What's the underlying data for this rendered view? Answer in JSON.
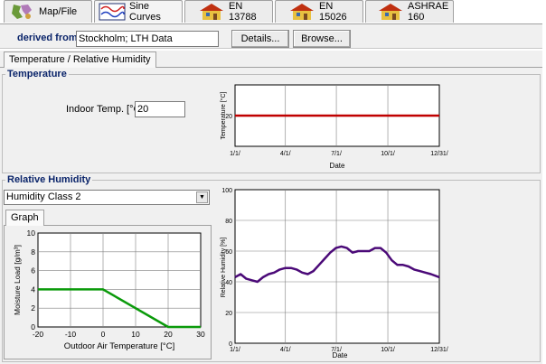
{
  "tabs": [
    {
      "label": "Map/File",
      "icon": "map-icon",
      "active": false
    },
    {
      "label": "Sine Curves",
      "icon": "sine-curves-icon",
      "active": true
    },
    {
      "label": "EN 13788",
      "icon": "house-icon",
      "active": false
    },
    {
      "label": "EN 15026",
      "icon": "house-icon",
      "active": false
    },
    {
      "label": "ASHRAE 160",
      "icon": "house-icon",
      "active": false
    }
  ],
  "source": {
    "label": "derived from",
    "value": "Stockholm; LTH Data",
    "details_button": "Details...",
    "browse_button": "Browse..."
  },
  "section_tab": "Temperature / Relative Humidity",
  "temperature": {
    "title": "Temperature",
    "indoor_label": "Indoor Temp. [°C]",
    "indoor_value": "20"
  },
  "humidity": {
    "title": "Relative Humidity",
    "class_selected": "Humidity Class 2",
    "graph_tab": "Graph"
  },
  "chart_data": [
    {
      "type": "line",
      "name": "temperature-chart",
      "xlabel": "Date",
      "ylabel": "Temperature [°C]",
      "x_ticks": [
        "1/1/",
        "4/1/",
        "7/1/",
        "10/1/",
        "12/31/"
      ],
      "y_ticks": [
        20
      ],
      "ylim": [
        10,
        30
      ],
      "grid": true,
      "color": "#c00000",
      "x": [
        0,
        365
      ],
      "values": [
        20,
        20
      ]
    },
    {
      "type": "line",
      "name": "moisture-load-chart",
      "xlabel": "Outdoor Air Temperature [°C]",
      "ylabel": "Moisture Load [g/m³]",
      "xlim": [
        -20,
        30
      ],
      "ylim": [
        0,
        10
      ],
      "x_ticks": [
        -20,
        -10,
        0,
        10,
        20,
        30
      ],
      "y_ticks": [
        0,
        2,
        4,
        6,
        8,
        10
      ],
      "grid": true,
      "color": "#0a9a0a",
      "x": [
        -20,
        0,
        20,
        30
      ],
      "values": [
        4,
        4,
        0,
        0
      ]
    },
    {
      "type": "line",
      "name": "relative-humidity-chart",
      "xlabel": "Date",
      "ylabel": "Relative Humidity [%]",
      "xlim": [
        0,
        365
      ],
      "ylim": [
        0,
        100
      ],
      "x_ticks": [
        "1/1/",
        "4/1/",
        "7/1/",
        "10/1/",
        "12/31/"
      ],
      "y_ticks": [
        0,
        20,
        40,
        60,
        80,
        100
      ],
      "grid": true,
      "color": "#4b0a78",
      "x": [
        0,
        10,
        20,
        30,
        40,
        50,
        60,
        70,
        80,
        90,
        100,
        110,
        120,
        130,
        140,
        150,
        160,
        170,
        180,
        190,
        200,
        210,
        220,
        230,
        240,
        250,
        260,
        270,
        280,
        290,
        300,
        310,
        320,
        330,
        340,
        350,
        365
      ],
      "values": [
        43,
        45,
        42,
        41,
        40,
        43,
        45,
        46,
        48,
        49,
        49,
        48,
        46,
        45,
        47,
        51,
        55,
        59,
        62,
        63,
        62,
        59,
        60,
        60,
        60,
        62,
        62,
        59,
        54,
        51,
        51,
        50,
        48,
        47,
        46,
        45,
        43
      ]
    }
  ]
}
